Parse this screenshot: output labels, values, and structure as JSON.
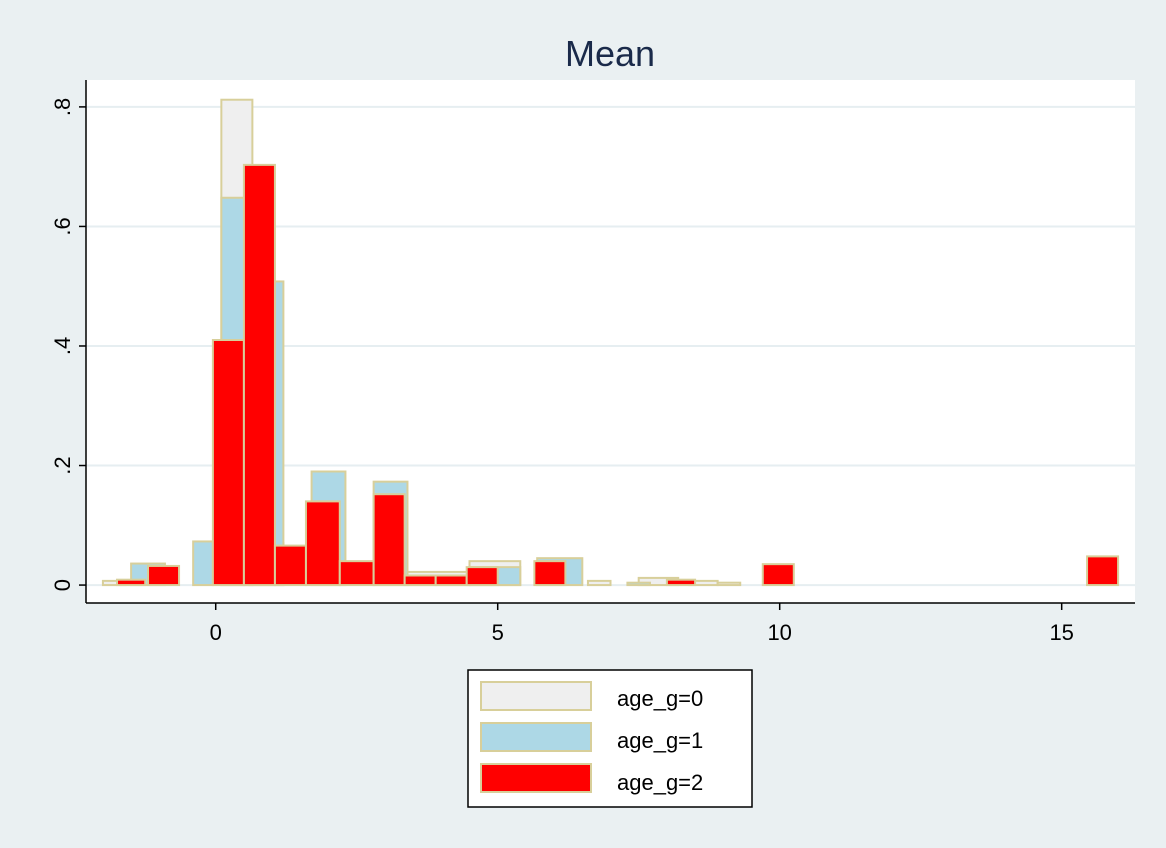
{
  "chart_data": {
    "type": "bar",
    "title": "Mean",
    "xlabel": "",
    "ylabel": "",
    "xlim": [
      -2.3,
      16.3
    ],
    "ylim": [
      -0.03,
      0.845
    ],
    "x_ticks": [
      {
        "value": 0,
        "label": "0"
      },
      {
        "value": 5,
        "label": "5"
      },
      {
        "value": 10,
        "label": "10"
      },
      {
        "value": 15,
        "label": "15"
      }
    ],
    "y_ticks": [
      {
        "value": 0,
        "label": "0"
      },
      {
        "value": 0.2,
        "label": ".2"
      },
      {
        "value": 0.4,
        "label": ".4"
      },
      {
        "value": 0.6,
        "label": ".6"
      },
      {
        "value": 0.8,
        "label": ".8"
      }
    ],
    "grid": true,
    "legend_position": "bottom",
    "bar_outline_color": "#d8cf9a",
    "series": [
      {
        "name": "age_g=0",
        "color": "#efefef",
        "bars": [
          {
            "x0": -2.0,
            "x1": -1.6,
            "y": 0.007
          },
          {
            "x0": 0.1,
            "x1": 0.65,
            "y": 0.812
          },
          {
            "x0": 0.65,
            "x1": 1.2,
            "y": 0.07
          },
          {
            "x0": 3.4,
            "x1": 4.5,
            "y": 0.022
          },
          {
            "x0": 4.5,
            "x1": 5.4,
            "y": 0.04
          },
          {
            "x0": 6.6,
            "x1": 7.0,
            "y": 0.007
          },
          {
            "x0": 7.5,
            "x1": 8.2,
            "y": 0.012
          },
          {
            "x0": 8.4,
            "x1": 8.9,
            "y": 0.007
          },
          {
            "x0": 8.9,
            "x1": 9.3,
            "y": 0.004
          }
        ]
      },
      {
        "name": "age_g=1",
        "color": "#add8e6",
        "bars": [
          {
            "x0": -1.5,
            "x1": -0.9,
            "y": 0.036
          },
          {
            "x0": -0.4,
            "x1": -0.05,
            "y": 0.073
          },
          {
            "x0": 0.1,
            "x1": 0.6,
            "y": 0.648
          },
          {
            "x0": 0.6,
            "x1": 1.2,
            "y": 0.508
          },
          {
            "x0": 1.7,
            "x1": 2.3,
            "y": 0.19
          },
          {
            "x0": 2.8,
            "x1": 3.4,
            "y": 0.173
          },
          {
            "x0": 4.5,
            "x1": 5.4,
            "y": 0.03
          },
          {
            "x0": 5.7,
            "x1": 6.5,
            "y": 0.045
          },
          {
            "x0": 7.3,
            "x1": 7.7,
            "y": 0.004
          }
        ]
      },
      {
        "name": "age_g=2",
        "color": "#ff0000",
        "bars": [
          {
            "x0": -1.75,
            "x1": -1.25,
            "y": 0.009
          },
          {
            "x0": -1.2,
            "x1": -0.65,
            "y": 0.032
          },
          {
            "x0": -0.05,
            "x1": 0.5,
            "y": 0.41
          },
          {
            "x0": 0.5,
            "x1": 1.05,
            "y": 0.703
          },
          {
            "x0": 1.05,
            "x1": 1.6,
            "y": 0.066
          },
          {
            "x0": 1.6,
            "x1": 2.2,
            "y": 0.14
          },
          {
            "x0": 2.2,
            "x1": 2.8,
            "y": 0.04
          },
          {
            "x0": 2.8,
            "x1": 3.35,
            "y": 0.152
          },
          {
            "x0": 3.35,
            "x1": 3.9,
            "y": 0.016
          },
          {
            "x0": 3.9,
            "x1": 4.45,
            "y": 0.016
          },
          {
            "x0": 4.45,
            "x1": 5.0,
            "y": 0.03
          },
          {
            "x0": 5.65,
            "x1": 6.2,
            "y": 0.04
          },
          {
            "x0": 8.0,
            "x1": 8.5,
            "y": 0.009
          },
          {
            "x0": 9.7,
            "x1": 10.25,
            "y": 0.035
          },
          {
            "x0": 15.45,
            "x1": 16.0,
            "y": 0.048
          }
        ]
      }
    ]
  }
}
